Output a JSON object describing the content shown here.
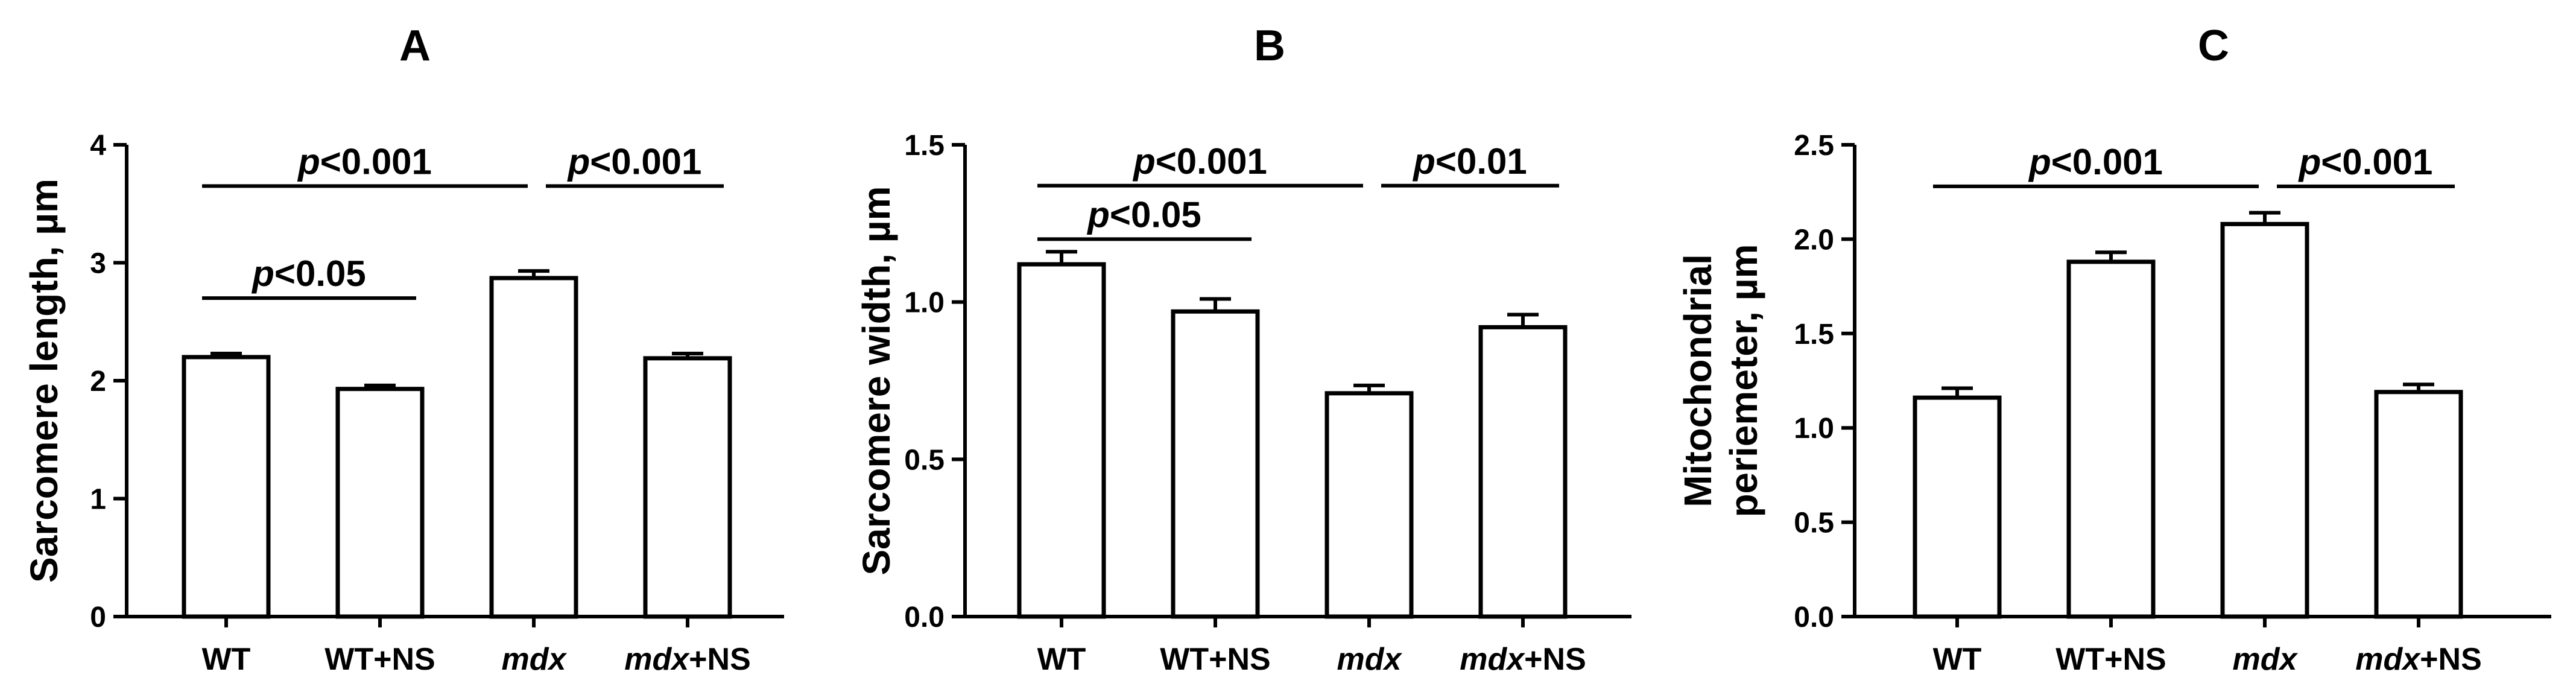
{
  "chart_data": [
    {
      "type": "bar",
      "title": "A",
      "ylabel": "Sarcomere length, µm",
      "ylim": [
        0,
        4
      ],
      "yticks": [
        "0",
        "1",
        "2",
        "3",
        "4"
      ],
      "categories": [
        {
          "base": "WT",
          "suffix": "",
          "italic": false
        },
        {
          "base": "WT",
          "suffix": "+NS",
          "italic": false
        },
        {
          "base": "mdx",
          "suffix": "",
          "italic": true
        },
        {
          "base": "mdx",
          "suffix": "+NS",
          "italic": true
        }
      ],
      "values": [
        2.2,
        1.93,
        2.87,
        2.19
      ],
      "errors": [
        0.03,
        0.03,
        0.06,
        0.04
      ],
      "comparisons": [
        {
          "from": 0,
          "to": 2,
          "y": 3.65,
          "label": "<0.001"
        },
        {
          "from": 2,
          "to": 3,
          "y": 3.65,
          "label": "<0.001"
        },
        {
          "from": 0,
          "to": 1,
          "y": 2.7,
          "label": "<0.05"
        }
      ]
    },
    {
      "type": "bar",
      "title": "B",
      "ylabel": "Sarcomere width, µm",
      "ylim": [
        0,
        1.5
      ],
      "yticks": [
        "0.0",
        "0.5",
        "1.0",
        "1.5"
      ],
      "categories": [
        {
          "base": "WT",
          "suffix": "",
          "italic": false
        },
        {
          "base": "WT",
          "suffix": "+NS",
          "italic": false
        },
        {
          "base": "mdx",
          "suffix": "",
          "italic": true
        },
        {
          "base": "mdx",
          "suffix": "+NS",
          "italic": true
        }
      ],
      "values": [
        1.12,
        0.97,
        0.71,
        0.92
      ],
      "errors": [
        0.04,
        0.04,
        0.025,
        0.04
      ],
      "comparisons": [
        {
          "from": 0,
          "to": 2,
          "y": 1.37,
          "label": "<0.001"
        },
        {
          "from": 2,
          "to": 3,
          "y": 1.37,
          "label": "<0.01"
        },
        {
          "from": 0,
          "to": 1,
          "y": 1.2,
          "label": "<0.05"
        }
      ]
    },
    {
      "type": "bar",
      "title": "C",
      "ylabel": [
        "Mitochondrial",
        "periemeter, µm"
      ],
      "ylim": [
        0,
        2.5
      ],
      "yticks": [
        "0.0",
        "0.5",
        "1.0",
        "1.5",
        "2.0",
        "2.5"
      ],
      "categories": [
        {
          "base": "WT",
          "suffix": "",
          "italic": false
        },
        {
          "base": "WT",
          "suffix": "+NS",
          "italic": false
        },
        {
          "base": "mdx",
          "suffix": "",
          "italic": true
        },
        {
          "base": "mdx",
          "suffix": "+NS",
          "italic": true
        }
      ],
      "values": [
        1.16,
        1.88,
        2.08,
        1.19
      ],
      "errors": [
        0.05,
        0.05,
        0.06,
        0.04
      ],
      "comparisons": [
        {
          "from": 0,
          "to": 2,
          "y": 2.28,
          "label": "<0.001"
        },
        {
          "from": 2,
          "to": 3,
          "y": 2.28,
          "label": "<0.001"
        }
      ]
    }
  ],
  "sig_prefix": "p"
}
